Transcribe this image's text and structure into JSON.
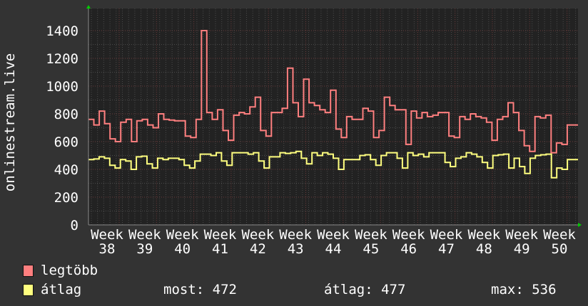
{
  "chart_data": {
    "type": "line",
    "step": true,
    "title": "",
    "ylabel": "onlinestream.live",
    "xlabel": "",
    "ylim": [
      0,
      1480
    ],
    "yticks": [
      0,
      200,
      400,
      600,
      800,
      1000,
      1200,
      1400
    ],
    "xtick_labels": [
      "Week 38",
      "Week 39",
      "Week 40",
      "Week 41",
      "Week 42",
      "Week 43",
      "Week 44",
      "Week 45",
      "Week 46",
      "Week 47",
      "Week 48",
      "Week 49",
      "Week 50"
    ],
    "grid": true,
    "colors": {
      "background": "#333333",
      "plot": "#222222",
      "max": "#ff7f7f",
      "avg": "#ffff7f",
      "grid_minor": "#4a4a4a",
      "grid_major": "#6a3a3a",
      "arrow": "#00cc00"
    },
    "series": [
      {
        "name": "legtöbb",
        "color": "#ff7f7f",
        "values": [
          760,
          720,
          820,
          730,
          620,
          600,
          740,
          760,
          600,
          750,
          760,
          720,
          700,
          800,
          760,
          755,
          750,
          750,
          640,
          630,
          760,
          1400,
          810,
          760,
          830,
          680,
          610,
          790,
          810,
          800,
          850,
          920,
          680,
          640,
          810,
          810,
          840,
          1130,
          880,
          780,
          1050,
          880,
          860,
          830,
          810,
          970,
          690,
          630,
          780,
          760,
          760,
          840,
          820,
          630,
          680,
          920,
          860,
          830,
          830,
          580,
          820,
          770,
          810,
          780,
          790,
          810,
          810,
          640,
          630,
          780,
          760,
          800,
          780,
          770,
          740,
          610,
          760,
          780,
          880,
          810,
          680,
          570,
          530,
          780,
          770,
          790,
          520,
          590,
          580,
          720,
          720
        ]
      },
      {
        "name": "átlag",
        "color": "#ffff7f",
        "values": [
          470,
          475,
          490,
          480,
          430,
          410,
          470,
          460,
          400,
          490,
          495,
          440,
          410,
          480,
          470,
          480,
          480,
          470,
          430,
          410,
          460,
          510,
          510,
          500,
          520,
          460,
          430,
          520,
          520,
          520,
          510,
          520,
          460,
          410,
          490,
          490,
          520,
          515,
          520,
          530,
          480,
          440,
          520,
          500,
          520,
          510,
          480,
          400,
          470,
          470,
          470,
          500,
          505,
          470,
          430,
          500,
          520,
          520,
          480,
          410,
          520,
          500,
          510,
          490,
          520,
          520,
          520,
          450,
          420,
          480,
          490,
          520,
          510,
          490,
          450,
          410,
          500,
          505,
          510,
          410,
          480,
          420,
          370,
          480,
          500,
          505,
          510,
          340,
          410,
          400,
          470,
          470
        ]
      }
    ]
  },
  "legend": {
    "max_label": "legtöbb",
    "avg_label": "átlag",
    "now": "most: 472",
    "avg": "átlag: 477",
    "max": "max: 536"
  }
}
